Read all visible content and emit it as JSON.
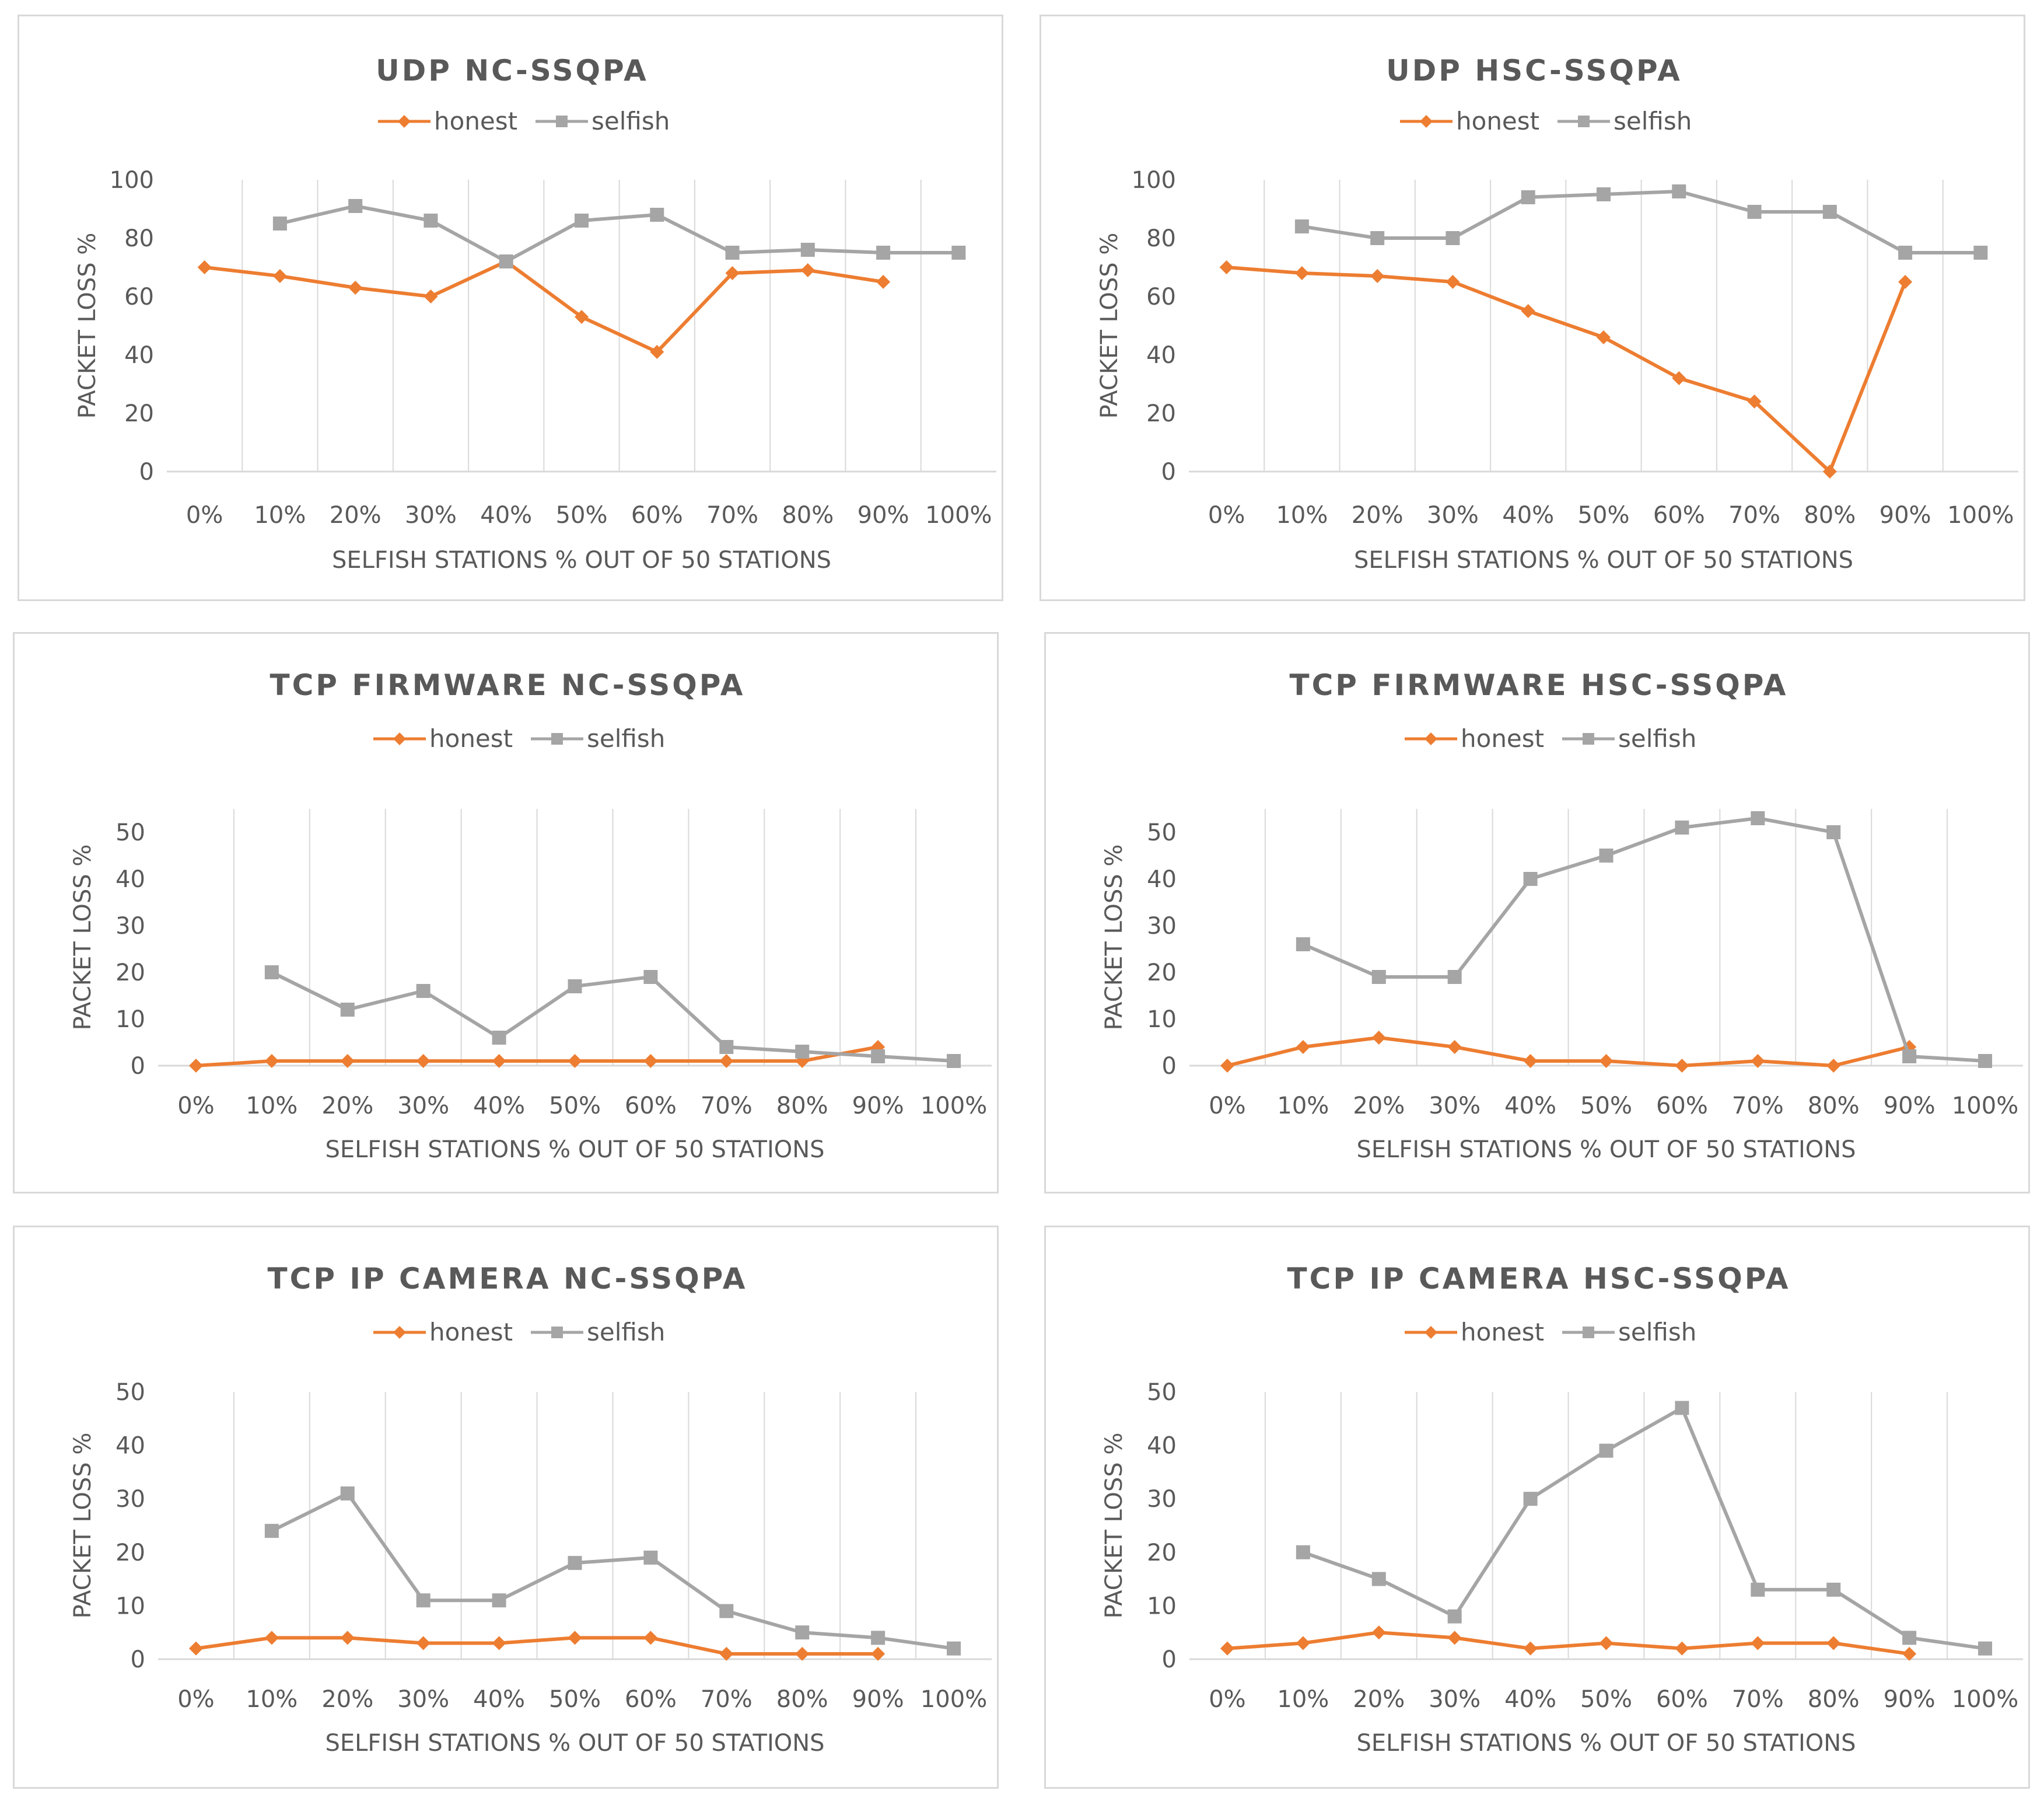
{
  "colors": {
    "honest": "#ed7d31",
    "selfish": "#a5a5a5",
    "grid": "#d9d9d9",
    "text": "#595959"
  },
  "chart_data": [
    {
      "type": "line",
      "title": "UDP NC-SSQPA",
      "xlabel": "SELFISH STATIONS % OUT OF 50 STATIONS",
      "ylabel": "PACKET LOSS %",
      "categories": [
        "0%",
        "10%",
        "20%",
        "30%",
        "40%",
        "50%",
        "60%",
        "70%",
        "80%",
        "90%",
        "100%"
      ],
      "ylim": [
        0,
        100
      ],
      "yticks": [
        0,
        20,
        40,
        60,
        80,
        100
      ],
      "legend": "top-center",
      "series": [
        {
          "name": "honest",
          "values": [
            70,
            67,
            63,
            60,
            72,
            53,
            41,
            68,
            69,
            65,
            null
          ]
        },
        {
          "name": "selfish",
          "values": [
            null,
            85,
            91,
            86,
            72,
            86,
            88,
            75,
            76,
            75,
            75
          ]
        }
      ]
    },
    {
      "type": "line",
      "title": "UDP HSC-SSQPA",
      "xlabel": "SELFISH STATIONS % OUT OF 50 STATIONS",
      "ylabel": "PACKET LOSS %",
      "categories": [
        "0%",
        "10%",
        "20%",
        "30%",
        "40%",
        "50%",
        "60%",
        "70%",
        "80%",
        "90%",
        "100%"
      ],
      "ylim": [
        0,
        100
      ],
      "yticks": [
        0,
        20,
        40,
        60,
        80,
        100
      ],
      "legend": "top-center",
      "series": [
        {
          "name": "honest",
          "values": [
            70,
            68,
            67,
            65,
            55,
            46,
            32,
            24,
            0,
            65,
            null
          ]
        },
        {
          "name": "selfish",
          "values": [
            null,
            84,
            80,
            80,
            94,
            95,
            96,
            89,
            89,
            75,
            75
          ]
        }
      ]
    },
    {
      "type": "line",
      "title": "TCP FIRMWARE NC-SSQPA",
      "xlabel": "SELFISH STATIONS % OUT OF 50 STATIONS",
      "ylabel": "PACKET LOSS %",
      "categories": [
        "0%",
        "10%",
        "20%",
        "30%",
        "40%",
        "50%",
        "60%",
        "70%",
        "80%",
        "90%",
        "100%"
      ],
      "ylim": [
        0,
        55
      ],
      "yticks": [
        0,
        10,
        20,
        30,
        40,
        50
      ],
      "legend": "top-center",
      "series": [
        {
          "name": "honest",
          "values": [
            0,
            1,
            1,
            1,
            1,
            1,
            1,
            1,
            1,
            4,
            null
          ]
        },
        {
          "name": "selfish",
          "values": [
            null,
            20,
            12,
            16,
            6,
            17,
            19,
            4,
            3,
            2,
            1
          ]
        }
      ]
    },
    {
      "type": "line",
      "title": "TCP FIRMWARE HSC-SSQPA",
      "xlabel": "SELFISH STATIONS % OUT OF 50 STATIONS",
      "ylabel": "PACKET LOSS %",
      "categories": [
        "0%",
        "10%",
        "20%",
        "30%",
        "40%",
        "50%",
        "60%",
        "70%",
        "80%",
        "90%",
        "100%"
      ],
      "ylim": [
        0,
        55
      ],
      "yticks": [
        0,
        10,
        20,
        30,
        40,
        50
      ],
      "legend": "top-center",
      "series": [
        {
          "name": "honest",
          "values": [
            0,
            4,
            6,
            4,
            1,
            1,
            0,
            1,
            0,
            4,
            null
          ]
        },
        {
          "name": "selfish",
          "values": [
            null,
            26,
            19,
            19,
            40,
            45,
            51,
            53,
            50,
            2,
            1
          ]
        }
      ]
    },
    {
      "type": "line",
      "title": "TCP IP CAMERA NC-SSQPA",
      "xlabel": "SELFISH STATIONS % OUT OF 50 STATIONS",
      "ylabel": "PACKET LOSS %",
      "categories": [
        "0%",
        "10%",
        "20%",
        "30%",
        "40%",
        "50%",
        "60%",
        "70%",
        "80%",
        "90%",
        "100%"
      ],
      "ylim": [
        0,
        50
      ],
      "yticks": [
        0,
        10,
        20,
        30,
        40,
        50
      ],
      "legend": "top-center",
      "series": [
        {
          "name": "honest",
          "values": [
            2,
            4,
            4,
            3,
            3,
            4,
            4,
            1,
            1,
            1,
            null
          ]
        },
        {
          "name": "selfish",
          "values": [
            null,
            24,
            31,
            11,
            11,
            18,
            19,
            9,
            5,
            4,
            2
          ]
        }
      ]
    },
    {
      "type": "line",
      "title": "TCP IP CAMERA HSC-SSQPA",
      "xlabel": "SELFISH STATIONS % OUT OF 50 STATIONS",
      "ylabel": "PACKET LOSS %",
      "categories": [
        "0%",
        "10%",
        "20%",
        "30%",
        "40%",
        "50%",
        "60%",
        "70%",
        "80%",
        "90%",
        "100%"
      ],
      "ylim": [
        0,
        50
      ],
      "yticks": [
        0,
        10,
        20,
        30,
        40,
        50
      ],
      "legend": "top-center",
      "series": [
        {
          "name": "honest",
          "values": [
            2,
            3,
            5,
            4,
            2,
            3,
            2,
            3,
            3,
            1,
            null
          ]
        },
        {
          "name": "selfish",
          "values": [
            null,
            20,
            15,
            8,
            30,
            39,
            47,
            13,
            13,
            4,
            2
          ]
        }
      ]
    }
  ]
}
